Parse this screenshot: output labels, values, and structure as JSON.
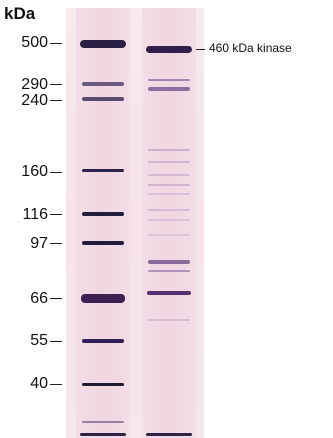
{
  "gel": {
    "axis_title": "kDa",
    "markers": [
      "500",
      "290",
      "240",
      "160",
      "116",
      "97",
      "66",
      "55",
      "40"
    ],
    "annotation": "460 kDa kinase"
  },
  "colors": {
    "marker_band": "#1f1a3a",
    "sample_band": "#3a2152",
    "faint_band": "#c9a6c4"
  }
}
